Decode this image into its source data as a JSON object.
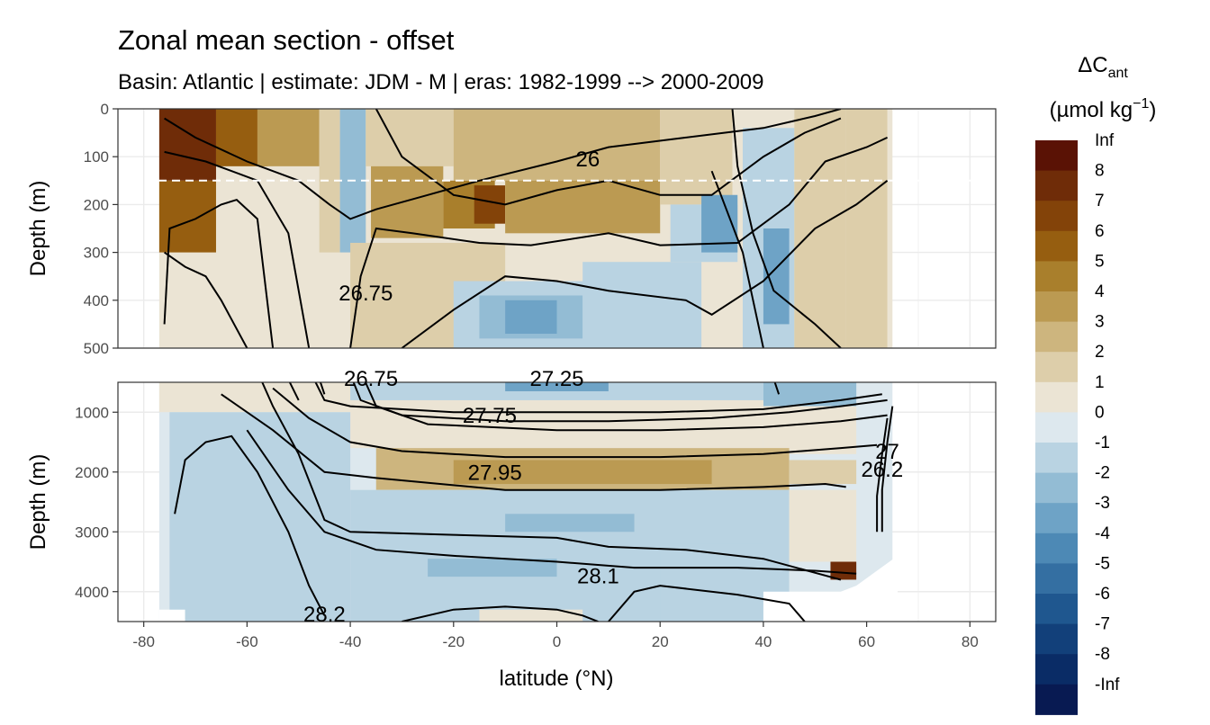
{
  "chart_data": {
    "type": "heatmap",
    "title": "Zonal mean section - offset",
    "subtitle": "Basin: Atlantic | estimate: JDM - M | eras: 1982-1999 --> 2000-2009",
    "xlabel": "latitude (°N)",
    "ylabel": "Depth (m)",
    "xlim": [
      -85,
      85
    ],
    "x_ticks": [
      "-80",
      "-60",
      "-40",
      "-20",
      "0",
      "20",
      "40",
      "60",
      "80"
    ],
    "panels": [
      {
        "name": "upper",
        "ylim": [
          0,
          500
        ],
        "y_ticks": [
          "0",
          "100",
          "200",
          "300",
          "400",
          "500"
        ],
        "dashed_line_depth": 150
      },
      {
        "name": "lower",
        "ylim": [
          500,
          4500
        ],
        "y_ticks": [
          "1000",
          "2000",
          "3000",
          "4000"
        ]
      }
    ],
    "legend": {
      "title_main": "ΔC",
      "title_sub": "ant",
      "units_pre": "(µmol kg",
      "units_sup": "−1",
      "units_post": ")",
      "position": "right",
      "labels": [
        "Inf",
        "8",
        "7",
        "6",
        "5",
        "4",
        "3",
        "2",
        "1",
        "0",
        "-1",
        "-2",
        "-3",
        "-4",
        "-5",
        "-6",
        "-7",
        "-8",
        "-Inf"
      ],
      "colors": [
        "#5a1205",
        "#6f2c08",
        "#834309",
        "#965e10",
        "#a97f2c",
        "#bb9a52",
        "#cdb57e",
        "#ddceaa",
        "#ebe4d4",
        "#dde8ee",
        "#b9d3e2",
        "#93bcd4",
        "#6ea3c6",
        "#4d89b5",
        "#346fa2",
        "#1f578f",
        "#12407a",
        "#0a2c66",
        "#081a52"
      ]
    },
    "isopycnal_labels": [
      {
        "text": "26",
        "lat": 6,
        "depth": 120
      },
      {
        "text": "26.75",
        "lat": -37,
        "depth": 400
      },
      {
        "text": "26.75",
        "lat": -36,
        "depth": 560
      },
      {
        "text": "27.25",
        "lat": 0,
        "depth": 560
      },
      {
        "text": "27.75",
        "lat": -13,
        "depth": 1180
      },
      {
        "text": "27.95",
        "lat": -12,
        "depth": 2130
      },
      {
        "text": "28.1",
        "lat": 8,
        "depth": 3860
      },
      {
        "text": "28.2",
        "lat": -45,
        "depth": 4500
      },
      {
        "text": "26.2",
        "lat": 63,
        "depth": 2080
      },
      {
        "text": "27",
        "lat": 64,
        "depth": 1780
      }
    ],
    "cells": [
      {
        "x": [
          -77,
          -66
        ],
        "y": [
          0,
          150
        ],
        "level": 8
      },
      {
        "x": [
          -77,
          -66
        ],
        "y": [
          150,
          300
        ],
        "level": 6
      },
      {
        "x": [
          -66,
          -56
        ],
        "y": [
          0,
          120
        ],
        "level": 6
      },
      {
        "x": [
          -58,
          -46
        ],
        "y": [
          0,
          120
        ],
        "level": 4
      },
      {
        "x": [
          -46,
          -42
        ],
        "y": [
          0,
          300
        ],
        "level": 2
      },
      {
        "x": [
          -42,
          -37
        ],
        "y": [
          0,
          300
        ],
        "level": -2
      },
      {
        "x": [
          -37,
          -20
        ],
        "y": [
          0,
          120
        ],
        "level": 2
      },
      {
        "x": [
          -36,
          -22
        ],
        "y": [
          120,
          270
        ],
        "level": 4
      },
      {
        "x": [
          -22,
          -12
        ],
        "y": [
          150,
          250
        ],
        "level": 5
      },
      {
        "x": [
          -16,
          -10
        ],
        "y": [
          160,
          240
        ],
        "level": 7
      },
      {
        "x": [
          -20,
          20
        ],
        "y": [
          0,
          150
        ],
        "level": 3
      },
      {
        "x": [
          -10,
          20
        ],
        "y": [
          150,
          260
        ],
        "level": 4
      },
      {
        "x": [
          20,
          34
        ],
        "y": [
          0,
          200
        ],
        "level": 2
      },
      {
        "x": [
          22,
          35
        ],
        "y": [
          200,
          320
        ],
        "level": -1
      },
      {
        "x": [
          28,
          35
        ],
        "y": [
          180,
          300
        ],
        "level": -3
      },
      {
        "x": [
          36,
          46
        ],
        "y": [
          40,
          500
        ],
        "level": -1
      },
      {
        "x": [
          40,
          45
        ],
        "y": [
          250,
          450
        ],
        "level": -3
      },
      {
        "x": [
          46,
          56
        ],
        "y": [
          0,
          500
        ],
        "level": 2
      },
      {
        "x": [
          56,
          64
        ],
        "y": [
          0,
          500
        ],
        "level": 2
      },
      {
        "x": [
          -40,
          -10
        ],
        "y": [
          280,
          500
        ],
        "level": 2
      },
      {
        "x": [
          -20,
          10
        ],
        "y": [
          360,
          500
        ],
        "level": -1
      },
      {
        "x": [
          -15,
          5
        ],
        "y": [
          390,
          480
        ],
        "level": -2
      },
      {
        "x": [
          -10,
          0
        ],
        "y": [
          400,
          470
        ],
        "level": -3
      },
      {
        "x": [
          5,
          28
        ],
        "y": [
          320,
          500
        ],
        "level": -1
      },
      {
        "x": [
          -77,
          -38
        ],
        "y": [
          500,
          1000
        ],
        "level": 1
      },
      {
        "x": [
          -40,
          40
        ],
        "y": [
          500,
          800
        ],
        "level": -1
      },
      {
        "x": [
          -10,
          10
        ],
        "y": [
          500,
          650
        ],
        "level": -3
      },
      {
        "x": [
          40,
          58
        ],
        "y": [
          500,
          900
        ],
        "level": -2
      },
      {
        "x": [
          -40,
          40
        ],
        "y": [
          800,
          1600
        ],
        "level": 1
      },
      {
        "x": [
          40,
          58
        ],
        "y": [
          900,
          1700
        ],
        "level": 1
      },
      {
        "x": [
          -35,
          45
        ],
        "y": [
          1600,
          2300
        ],
        "level": 3
      },
      {
        "x": [
          -20,
          30
        ],
        "y": [
          1800,
          2200
        ],
        "level": 4
      },
      {
        "x": [
          45,
          58
        ],
        "y": [
          1800,
          2200
        ],
        "level": 2
      },
      {
        "x": [
          -75,
          -40
        ],
        "y": [
          1000,
          4500
        ],
        "level": -1
      },
      {
        "x": [
          -40,
          45
        ],
        "y": [
          2300,
          4500
        ],
        "level": -1
      },
      {
        "x": [
          -25,
          0
        ],
        "y": [
          3450,
          3750
        ],
        "level": -2
      },
      {
        "x": [
          -10,
          15
        ],
        "y": [
          2700,
          3000
        ],
        "level": -2
      },
      {
        "x": [
          20,
          40
        ],
        "y": [
          3200,
          4500
        ],
        "level": -1
      },
      {
        "x": [
          45,
          58
        ],
        "y": [
          2300,
          3500
        ],
        "level": 1
      },
      {
        "x": [
          53,
          58
        ],
        "y": [
          3500,
          3800
        ],
        "level": 8
      },
      {
        "x": [
          -15,
          5
        ],
        "y": [
          4300,
          4500
        ],
        "level": 1
      }
    ]
  }
}
